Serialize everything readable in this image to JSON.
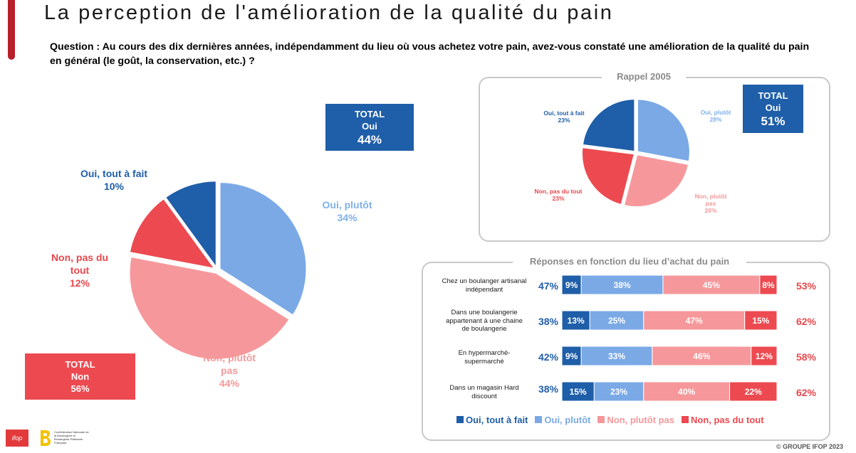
{
  "header": {
    "title": "La perception de l'amélioration de la qualité du pain",
    "question": "Question : Au cours des dix dernières années, indépendamment du lieu où vous achetez votre pain, avez-vous constaté une amélioration de la qualité du pain en général (le goût, la conservation, etc.) ?"
  },
  "colors": {
    "oui_tout_a_fait": "#1f5ea8",
    "oui_plutot": "#7aa9e6",
    "non_plutot_pas": "#f6989b",
    "non_pas_du_tout": "#ec4a50",
    "total_oui_box": "#1f5ea8",
    "total_non_box": "#ec4a50"
  },
  "main_pie": {
    "total_oui": {
      "line1": "TOTAL",
      "line2": "Oui",
      "value": "44%"
    },
    "total_non": {
      "line1": "TOTAL",
      "line2": "Non",
      "value": "56%"
    },
    "labels": {
      "oui_tout_a_fait": {
        "name": "Oui, tout à fait",
        "value": "10%"
      },
      "oui_plutot": {
        "name": "Oui, plutôt",
        "value": "34%"
      },
      "non_plutot_pas": {
        "name_l1": "Non, plutôt",
        "name_l2": "pas",
        "value": "44%"
      },
      "non_pas_du_tout": {
        "name_l1": "Non, pas du",
        "name_l2": "tout",
        "value": "12%"
      }
    }
  },
  "rappel": {
    "title": "Rappel 2005",
    "total_oui": {
      "line1": "TOTAL",
      "line2": "Oui",
      "value": "51%"
    },
    "labels": {
      "oui_tout_a_fait": {
        "name": "Oui, tout à fait",
        "value": "23%"
      },
      "oui_plutot": {
        "name": "Oui, plutôt",
        "value": "28%"
      },
      "non_plutot_pas": {
        "name_l1": "Non, plutôt",
        "name_l2": "pas",
        "value": "26%"
      },
      "non_pas_du_tout": {
        "name": "Non, pas du tout",
        "value": "23%"
      }
    }
  },
  "bars_panel": {
    "title": "Réponses en fonction du lieu d’achat du pain",
    "rows": [
      {
        "label_lines": [
          "Chez un boulanger artisanal",
          "indépendant"
        ],
        "total_oui": "47%",
        "total_non": "53%"
      },
      {
        "label_lines": [
          "Dans une boulangerie",
          "appartenant à une chaine",
          "de boulangerie"
        ],
        "total_oui": "38%",
        "total_non": "62%"
      },
      {
        "label_lines": [
          "En hypermarché-",
          "supermarché"
        ],
        "total_oui": "42%",
        "total_non": "58%"
      },
      {
        "label_lines": [
          "Dans un magasin Hard",
          "discount"
        ],
        "total_oui": "38%",
        "total_non": "62%"
      }
    ],
    "legend": [
      "Oui, tout à fait",
      "Oui, plutôt",
      "Non, plutôt pas",
      "Non, pas du tout"
    ]
  },
  "footer": {
    "copyright": "© GROUPE IFOP 2023",
    "logo_ifop": "ifop",
    "logo_b_text": "Confédération Nationale de la Boulangerie et Boulangerie-Pâtisserie Française"
  },
  "chart_data": [
    {
      "type": "pie",
      "title": "",
      "categories": [
        "Oui, tout à fait",
        "Oui, plutôt",
        "Non, plutôt pas",
        "Non, pas du tout"
      ],
      "values": [
        10,
        34,
        44,
        12
      ],
      "exploded": true
    },
    {
      "type": "pie",
      "title": "Rappel 2005",
      "categories": [
        "Oui, tout à fait",
        "Oui, plutôt",
        "Non, plutôt pas",
        "Non, pas du tout"
      ],
      "values": [
        23,
        28,
        26,
        23
      ],
      "exploded": true
    },
    {
      "type": "bar",
      "orientation": "horizontal",
      "stacked": true,
      "title": "Réponses en fonction du lieu d’achat du pain",
      "categories": [
        "Chez un boulanger artisanal indépendant",
        "Dans une boulangerie appartenant à une chaine de boulangerie",
        "En hypermarché-supermarché",
        "Dans un magasin Hard discount"
      ],
      "series": [
        {
          "name": "Oui, tout à fait",
          "values": [
            9,
            13,
            9,
            15
          ]
        },
        {
          "name": "Oui, plutôt",
          "values": [
            38,
            25,
            33,
            23
          ]
        },
        {
          "name": "Non, plutôt pas",
          "values": [
            45,
            47,
            46,
            40
          ]
        },
        {
          "name": "Non, pas du tout",
          "values": [
            8,
            15,
            12,
            22
          ]
        }
      ],
      "xlim": [
        0,
        100
      ],
      "legend": "bottom"
    }
  ]
}
